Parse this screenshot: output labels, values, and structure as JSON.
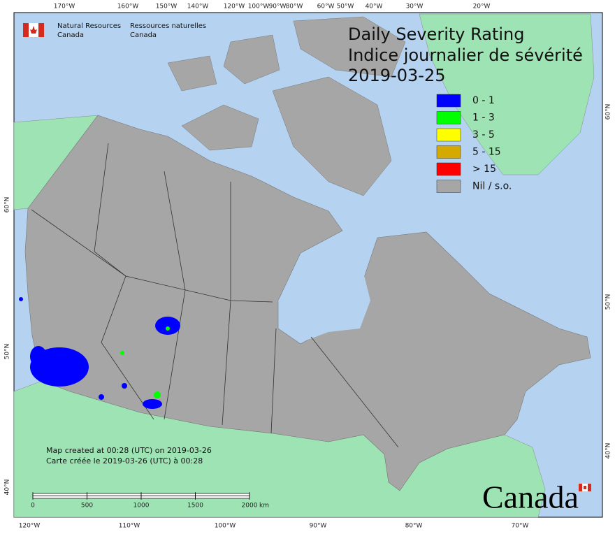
{
  "header": {
    "department_en": [
      "Natural Resources",
      "Canada"
    ],
    "department_fr": [
      "Ressources naturelles",
      "Canada"
    ]
  },
  "title": [
    "Daily Severity Rating",
    "Indice journalier de sévérité",
    "2019-03-25"
  ],
  "legend": [
    {
      "label": "0 - 1",
      "color": "#0000ff"
    },
    {
      "label": "1 - 3",
      "color": "#00ff00"
    },
    {
      "label": "3 - 5",
      "color": "#ffff00"
    },
    {
      "label": "5 - 15",
      "color": "#d4aa00"
    },
    {
      "label": "> 15",
      "color": "#ff0000"
    },
    {
      "label": "Nil / s.o.",
      "color": "#a6a6a6"
    }
  ],
  "footer": [
    "Map created at 00:28 (UTC) on 2019-03-26",
    "Carte créée le 2019-03-26 (UTC) à 00:28"
  ],
  "scale_bar": {
    "ticks": [
      0,
      500,
      1000,
      1500,
      2000
    ],
    "unit": "km"
  },
  "graticule": {
    "top": [
      "170°W",
      "160°W",
      "150°W",
      "140°W",
      "120°W",
      "100°W",
      "90°W",
      "80°W",
      "60°W",
      "50°W",
      "40°W",
      "30°W",
      "20°W"
    ],
    "bottom": [
      "120°W",
      "110°W",
      "100°W",
      "90°W",
      "80°W",
      "70°W"
    ],
    "left": [
      "60°N",
      "50°N",
      "40°N"
    ],
    "right": [
      "60°N",
      "50°N",
      "40°N"
    ]
  },
  "wordmark": "Canada"
}
